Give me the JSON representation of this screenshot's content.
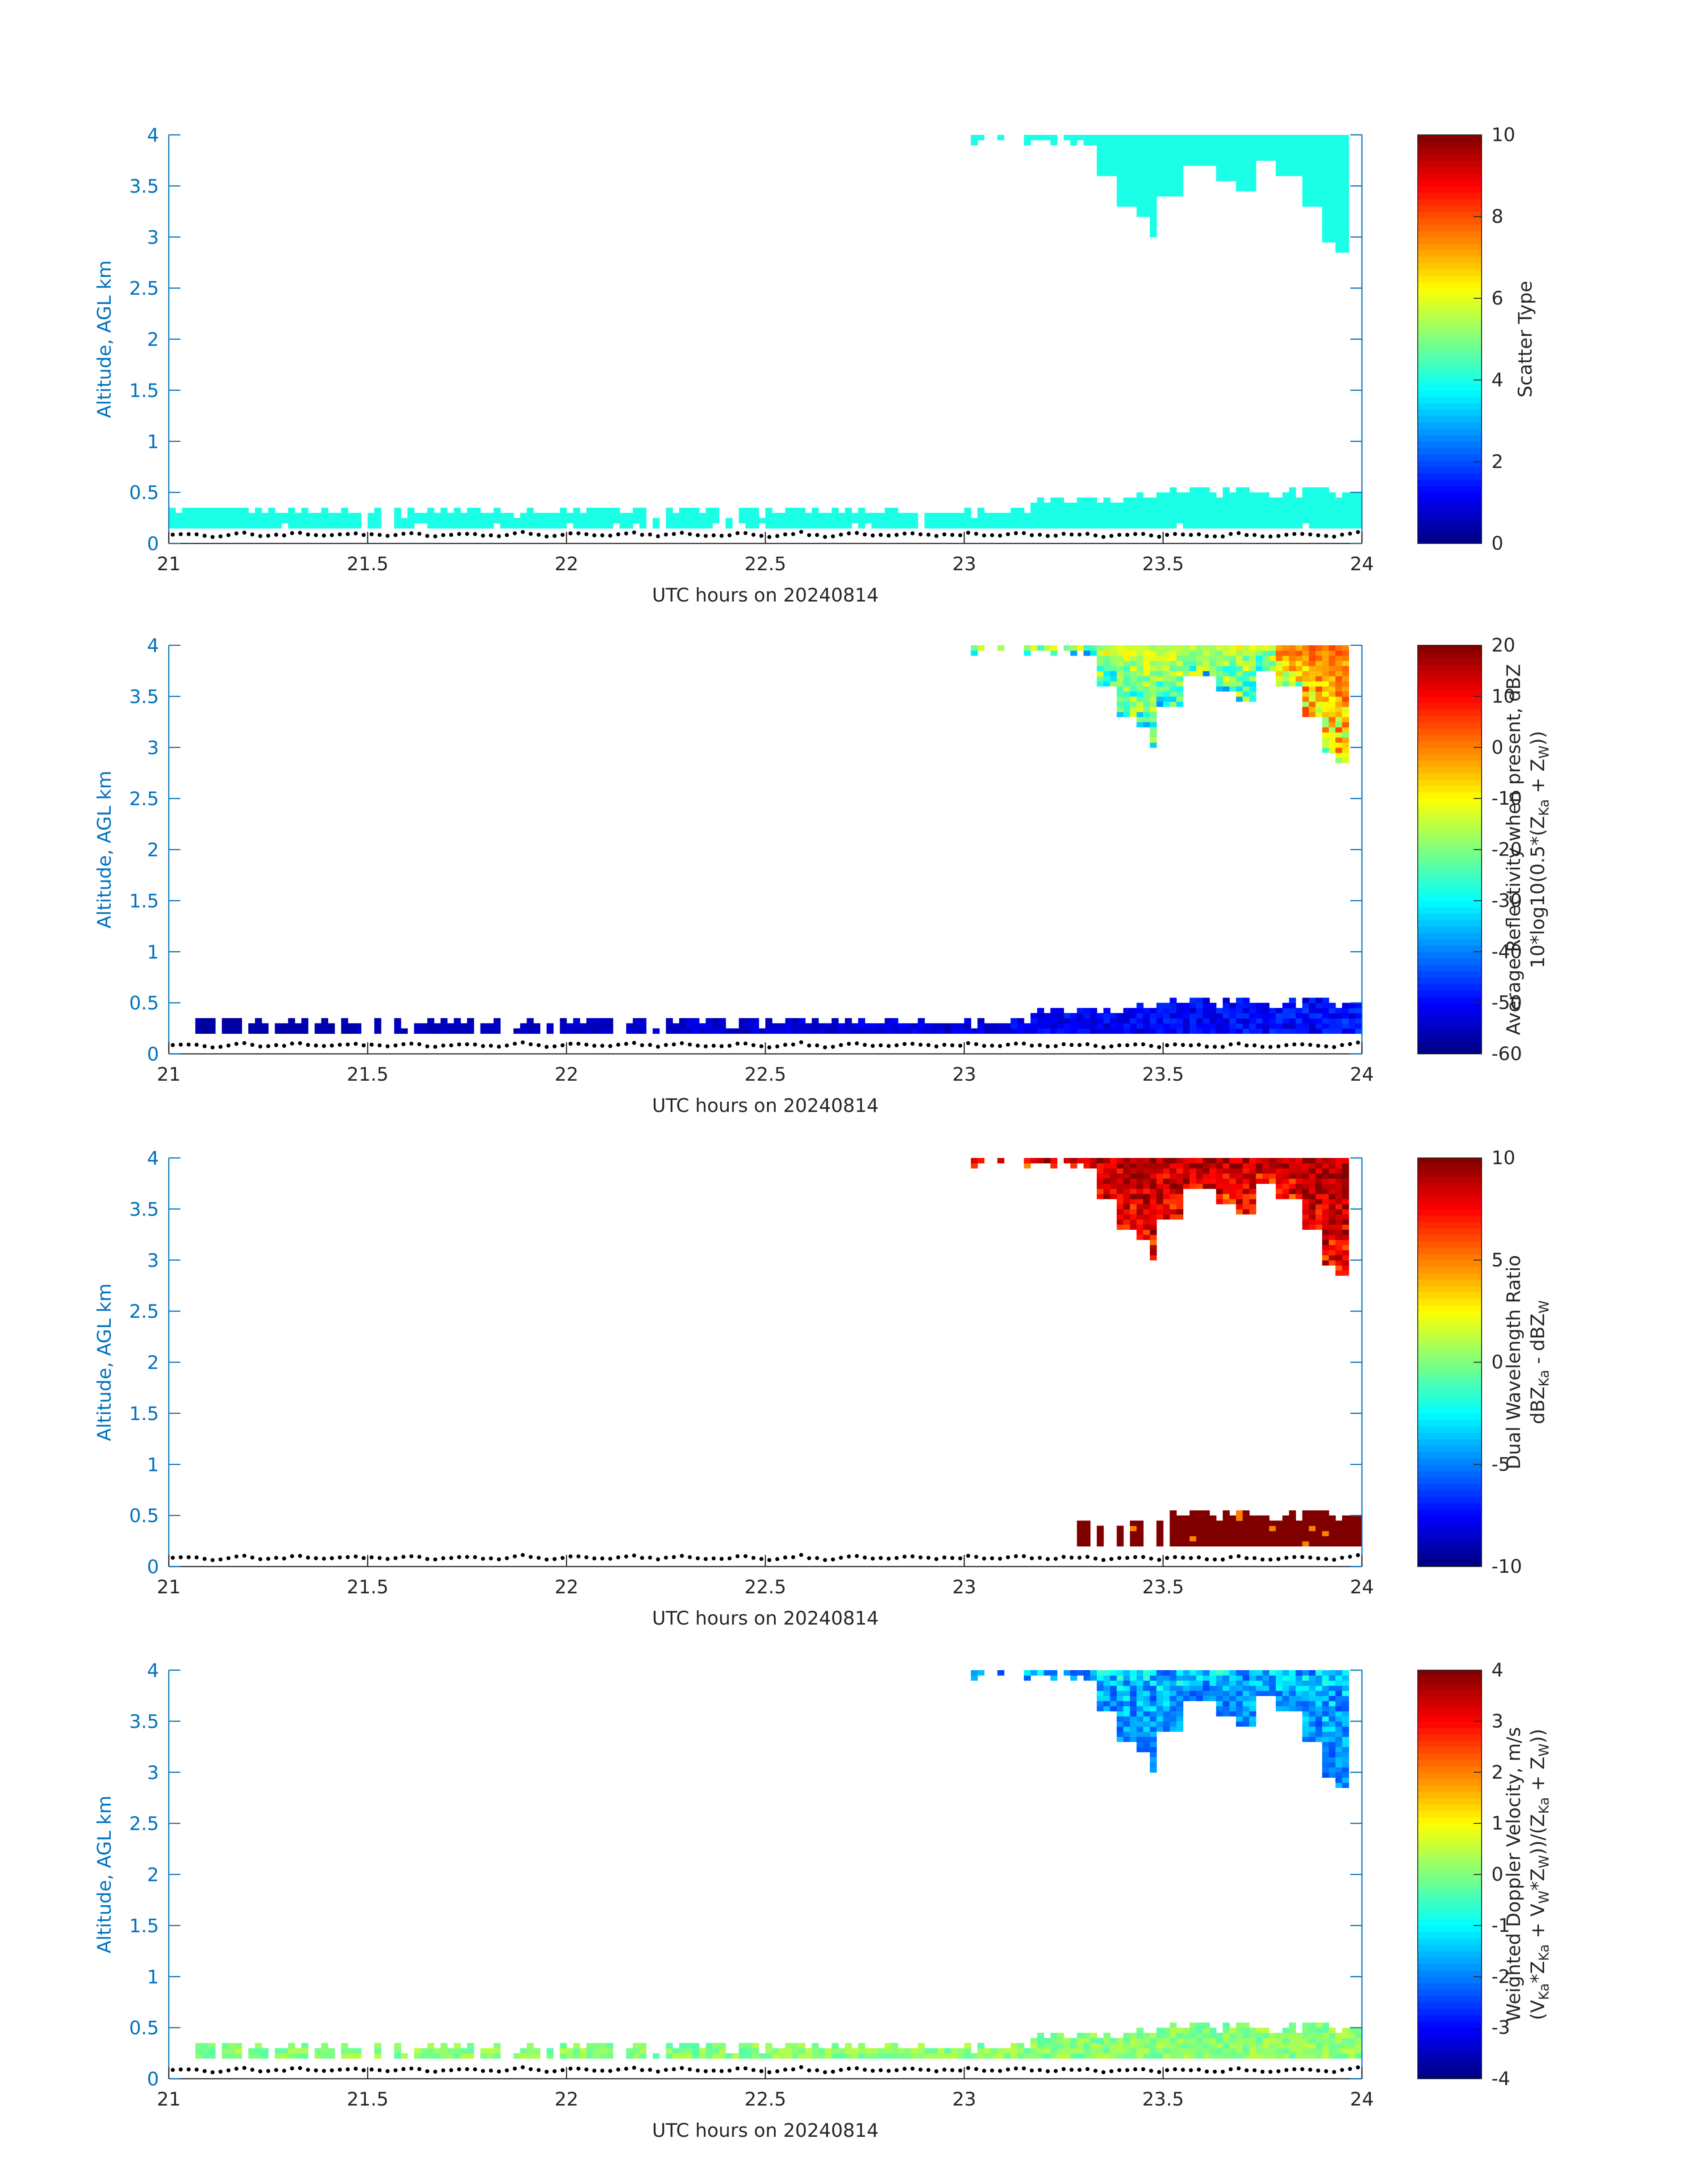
{
  "figure": {
    "background": "#ffffff",
    "axis_color": "#0072bd",
    "text_color": "#262626"
  },
  "chart_data": [
    {
      "type": "heatmap",
      "title": "",
      "xlabel": "UTC hours on 20240814",
      "ylabel": "Altitude, AGL km",
      "xlim": [
        21,
        24
      ],
      "ylim": [
        0,
        4
      ],
      "xticks": [
        "21",
        "21.5",
        "22",
        "22.5",
        "23",
        "23.5",
        "24"
      ],
      "yticks": [
        "0",
        "0.5",
        "1",
        "1.5",
        "2",
        "2.5",
        "3",
        "3.5",
        "4"
      ],
      "colorbar": {
        "label_lines": [
          "Scatter Type"
        ],
        "min": 0,
        "max": 10,
        "ticks": [
          "0",
          "2",
          "4",
          "6",
          "8",
          "10"
        ],
        "colormap": "jet"
      },
      "field": {
        "low_layer": {
          "z_bottom_km": 0.16,
          "z_top_km": [
            0.2,
            0.4
          ],
          "value": 4
        },
        "upper_layer": {
          "x_start_h": 23.35,
          "z_base_km": [
            2.85,
            3.6
          ],
          "value": 4
        }
      },
      "ground_markers": {
        "y_km": [
          0.05,
          0.12
        ],
        "color": "#000000"
      }
    },
    {
      "type": "heatmap",
      "title": "",
      "xlabel": "UTC hours on 20240814",
      "ylabel": "Altitude, AGL km",
      "xlim": [
        21,
        24
      ],
      "ylim": [
        0,
        4
      ],
      "xticks": [
        "21",
        "21.5",
        "22",
        "22.5",
        "23",
        "23.5",
        "24"
      ],
      "yticks": [
        "0",
        "0.5",
        "1",
        "1.5",
        "2",
        "2.5",
        "3",
        "3.5",
        "4"
      ],
      "colorbar": {
        "label_lines": [
          "Average Reflectivity when present, dBZ",
          "10*log10(0.5*(Z",
          "Ka",
          " + Z",
          "W",
          "))"
        ],
        "min": -60,
        "max": 20,
        "ticks": [
          "-60",
          "-50",
          "-40",
          "-30",
          "-20",
          "-10",
          "0",
          "10",
          "20"
        ],
        "colormap": "jet"
      },
      "field": {
        "low_layer": {
          "value_range": [
            -58,
            -45
          ]
        },
        "upper_layer": {
          "value_range": [
            -45,
            5
          ]
        }
      },
      "ground_markers": {
        "y_km": [
          0.05,
          0.12
        ],
        "color": "#000000"
      }
    },
    {
      "type": "heatmap",
      "title": "",
      "xlabel": "UTC hours on 20240814",
      "ylabel": "Altitude, AGL km",
      "xlim": [
        21,
        24
      ],
      "ylim": [
        0,
        4
      ],
      "xticks": [
        "21",
        "21.5",
        "22",
        "22.5",
        "23",
        "23.5",
        "24"
      ],
      "yticks": [
        "0",
        "0.5",
        "1",
        "1.5",
        "2",
        "2.5",
        "3",
        "3.5",
        "4"
      ],
      "colorbar": {
        "label_lines": [
          "Dual Wavelength Ratio",
          "dBZ",
          "Ka",
          " - dBZ",
          "W"
        ],
        "min": -10,
        "max": 10,
        "ticks": [
          "-10",
          "-5",
          "0",
          "5",
          "10"
        ],
        "colormap": "jet"
      },
      "field": {
        "low_layer": {
          "x_start_h": 23.25,
          "value": 10
        },
        "upper_layer": {
          "value_range": [
            -2,
            10
          ]
        }
      },
      "ground_markers": {
        "y_km": [
          0.05,
          0.12
        ],
        "color": "#000000"
      }
    },
    {
      "type": "heatmap",
      "title": "",
      "xlabel": "UTC hours on 20240814",
      "ylabel": "Altitude, AGL km",
      "xlim": [
        21,
        24
      ],
      "ylim": [
        0,
        4
      ],
      "xticks": [
        "21",
        "21.5",
        "22",
        "22.5",
        "23",
        "23.5",
        "24"
      ],
      "yticks": [
        "0",
        "0.5",
        "1",
        "1.5",
        "2",
        "2.5",
        "3",
        "3.5",
        "4"
      ],
      "colorbar": {
        "label_lines": [
          "Weighted Doppler Velocity, m/s",
          "(V",
          "Ka",
          "*Z",
          "Ka",
          " + V",
          "W",
          "*Z",
          "W",
          "))/(Z",
          "Ka",
          " + Z",
          "W",
          "))"
        ],
        "min": -4,
        "max": 4,
        "ticks": [
          "-4",
          "-3",
          "-2",
          "-1",
          "0",
          "1",
          "2",
          "3",
          "4"
        ],
        "colormap": "jet"
      },
      "field": {
        "low_layer": {
          "value_range": [
            -0.8,
            0.5
          ]
        },
        "upper_layer": {
          "value_range": [
            -3.8,
            0
          ]
        }
      },
      "ground_markers": {
        "y_km": [
          0.05,
          0.12
        ],
        "color": "#000000"
      }
    }
  ]
}
